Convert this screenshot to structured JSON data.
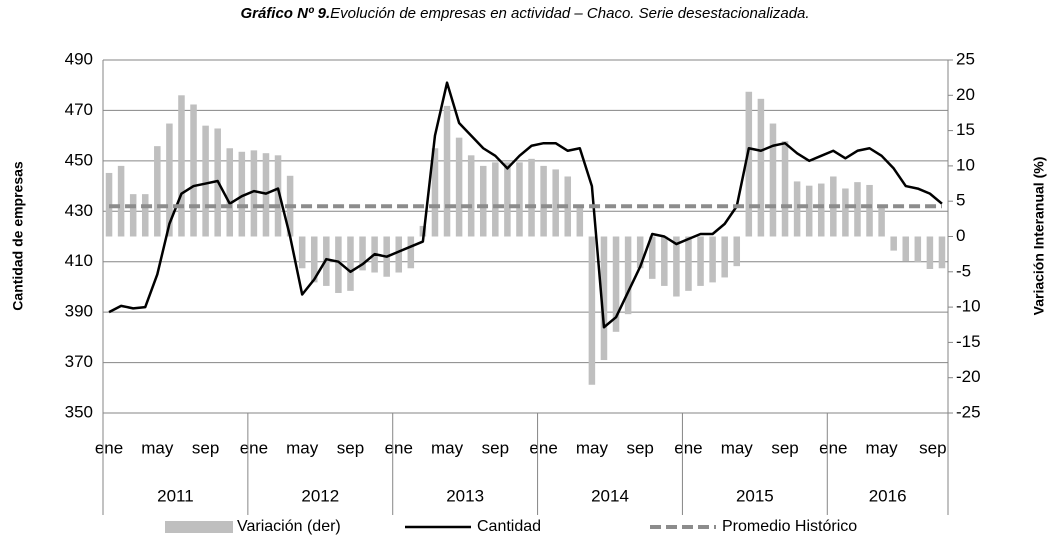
{
  "chart_data": {
    "type": "bar-line",
    "title_prefix": "Gráfico Nº 9.",
    "title": "Evolución de empresas en actividad – Chaco. Serie desestacionalizada.",
    "ylabel": "Cantidad de empresas",
    "y2label": "Variación Interanual (%)",
    "categories": [
      "ene",
      null,
      null,
      null,
      "may",
      null,
      null,
      null,
      "sep",
      null,
      null,
      null,
      "ene",
      null,
      null,
      null,
      "may",
      null,
      null,
      null,
      "sep",
      null,
      null,
      null,
      "ene",
      null,
      null,
      null,
      "may",
      null,
      null,
      null,
      "sep",
      null,
      null,
      null,
      "ene",
      null,
      null,
      null,
      "may",
      null,
      null,
      null,
      "sep",
      null,
      null,
      null,
      "ene",
      null,
      null,
      null,
      "may",
      null,
      null,
      null,
      "sep",
      null,
      null,
      null,
      "ene",
      null,
      null,
      null,
      "may",
      null,
      null,
      null,
      "sep",
      null
    ],
    "years": [
      "2011",
      "2012",
      "2013",
      "2014",
      "2015",
      "2016"
    ],
    "year_months": [
      12,
      12,
      12,
      12,
      12,
      10
    ],
    "ylim": [
      350,
      490
    ],
    "yticks": [
      350,
      370,
      390,
      410,
      430,
      450,
      470,
      490
    ],
    "y2lim": [
      -25,
      25
    ],
    "y2ticks": [
      -25,
      -20,
      -15,
      -10,
      -5,
      0,
      5,
      10,
      15,
      20,
      25
    ],
    "grid": true,
    "series": [
      {
        "name": "Variación (der)",
        "type": "bar",
        "color": "#bfbfbf",
        "axis": "y2",
        "values": [
          9,
          10,
          6,
          6,
          12.8,
          16,
          20,
          18.7,
          15.7,
          15.3,
          12.5,
          12,
          12.2,
          11.8,
          11.5,
          8.6,
          -4.5,
          -6.5,
          -7,
          -8,
          -7.7,
          -4.8,
          -5.1,
          -5.7,
          -5.1,
          -4.5,
          1.5,
          12.5,
          18.5,
          14,
          11.5,
          10,
          10.5,
          10.5,
          10.5,
          11,
          10,
          9.5,
          8.5,
          4.5,
          -21,
          -17.5,
          -13.5,
          -11,
          -4.5,
          -6,
          -7,
          -8.5,
          -7.7,
          -7,
          -6.5,
          -5.8,
          -4.2,
          20.5,
          19.5,
          16,
          13.5,
          7.8,
          7.2,
          7.5,
          8.5,
          6.8,
          7.7,
          7.3,
          4.5,
          -2,
          -3.5,
          -3.6,
          -4.6,
          -4.5
        ]
      },
      {
        "name": "Cantidad",
        "type": "line",
        "color": "#000000",
        "values": [
          390,
          392.5,
          391.5,
          392,
          405,
          425,
          437,
          440,
          441,
          442,
          433,
          436,
          438,
          437,
          439,
          420,
          397,
          403,
          411,
          410,
          406,
          409,
          413,
          412,
          414,
          416,
          418,
          460,
          481,
          465,
          460,
          455,
          452,
          447,
          452,
          456,
          457,
          457,
          454,
          455,
          440,
          384,
          388,
          398,
          408,
          421,
          420,
          417,
          419,
          421,
          421,
          425,
          432,
          455,
          454,
          456,
          457,
          453,
          450,
          452,
          454,
          451,
          454,
          455,
          452,
          447,
          440,
          439,
          437,
          433
        ]
      },
      {
        "name": "Promedio Histórico",
        "type": "line",
        "color": "#8c8c8c",
        "dashed": true,
        "values": [
          432,
          432,
          432,
          432,
          432,
          432,
          432,
          432,
          432,
          432,
          432,
          432,
          432,
          432,
          432,
          432,
          432,
          432,
          432,
          432,
          432,
          432,
          432,
          432,
          432,
          432,
          432,
          432,
          432,
          432,
          432,
          432,
          432,
          432,
          432,
          432,
          432,
          432,
          432,
          432,
          432,
          432,
          432,
          432,
          432,
          432,
          432,
          432,
          432,
          432,
          432,
          432,
          432,
          432,
          432,
          432,
          432,
          432,
          432,
          432,
          432,
          432,
          432,
          432,
          432,
          432,
          432,
          432,
          432,
          432
        ]
      }
    ]
  }
}
